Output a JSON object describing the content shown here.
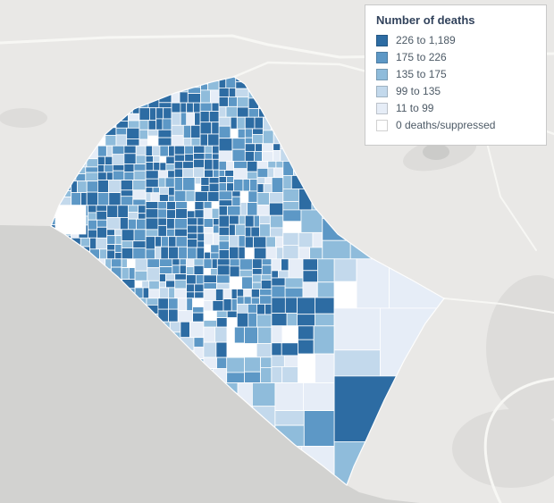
{
  "legend": {
    "title": "Number of deaths",
    "items": [
      {
        "label": "226 to 1,189",
        "color": "#2d6ca3"
      },
      {
        "label": "175 to 226",
        "color": "#5d98c6"
      },
      {
        "label": "135 to 175",
        "color": "#8fbcdb"
      },
      {
        "label": "99 to 135",
        "color": "#c3d9ec"
      },
      {
        "label": "11 to 99",
        "color": "#e6edf7"
      },
      {
        "label": "0 deaths/suppressed",
        "color": "#ffffff"
      }
    ]
  },
  "map": {
    "type": "choropleth",
    "subject": "deaths by census tract",
    "basemap": {
      "land": "#e9e8e6",
      "ocean": "#d2d2d0",
      "terrain": "#dddcda",
      "terrain_dark": "#cbcbc9",
      "road": "#f7f7f4",
      "tract_border": "#ffffff",
      "county_underlay": "#dfe8f2"
    }
  }
}
